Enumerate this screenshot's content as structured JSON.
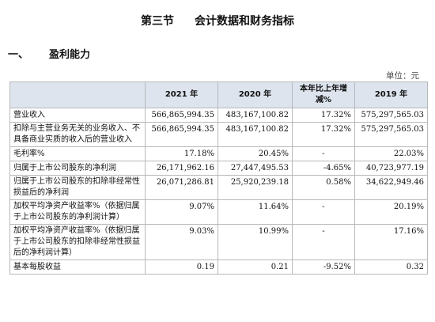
{
  "heading": {
    "part": "第三节",
    "title": "会计数据和财务指标"
  },
  "section": {
    "number": "一、",
    "title": "盈利能力"
  },
  "unit": "单位：元",
  "table": {
    "headers": [
      "",
      "2021 年",
      "2020 年",
      "本年比上年增减%",
      "2019 年"
    ],
    "rows": [
      [
        "营业收入",
        "566,865,994.35",
        "483,167,100.82",
        "17.32%",
        "575,297,565.03"
      ],
      [
        "扣除与主营业务无关的业务收入、不具备商业实质的收入后的营业收入",
        "566,865,994.35",
        "483,167,100.82",
        "17.32%",
        "575,297,565.03"
      ],
      [
        "毛利率%",
        "17.18%",
        "20.45%",
        "-",
        "22.03%"
      ],
      [
        "归属于上市公司股东的净利润",
        "26,171,962.16",
        "27,447,495.53",
        "-4.65%",
        "40,723,977.19"
      ],
      [
        "归属于上市公司股东的扣除非经常性损益后的净利润",
        "26,071,286.81",
        "25,920,239.18",
        "0.58%",
        "34,622,949.46"
      ],
      [
        "加权平均净资产收益率%（依据归属于上市公司股东的净利润计算）",
        "9.07%",
        "11.64%",
        "-",
        "20.19%"
      ],
      [
        "加权平均净资产收益率%（依据归属于上市公司股东的扣除非经常性损益后的净利润计算）",
        "9.03%",
        "10.99%",
        "-",
        "17.16%"
      ],
      [
        "基本每股收益",
        "0.19",
        "0.21",
        "-9.52%",
        "0.32"
      ]
    ]
  }
}
